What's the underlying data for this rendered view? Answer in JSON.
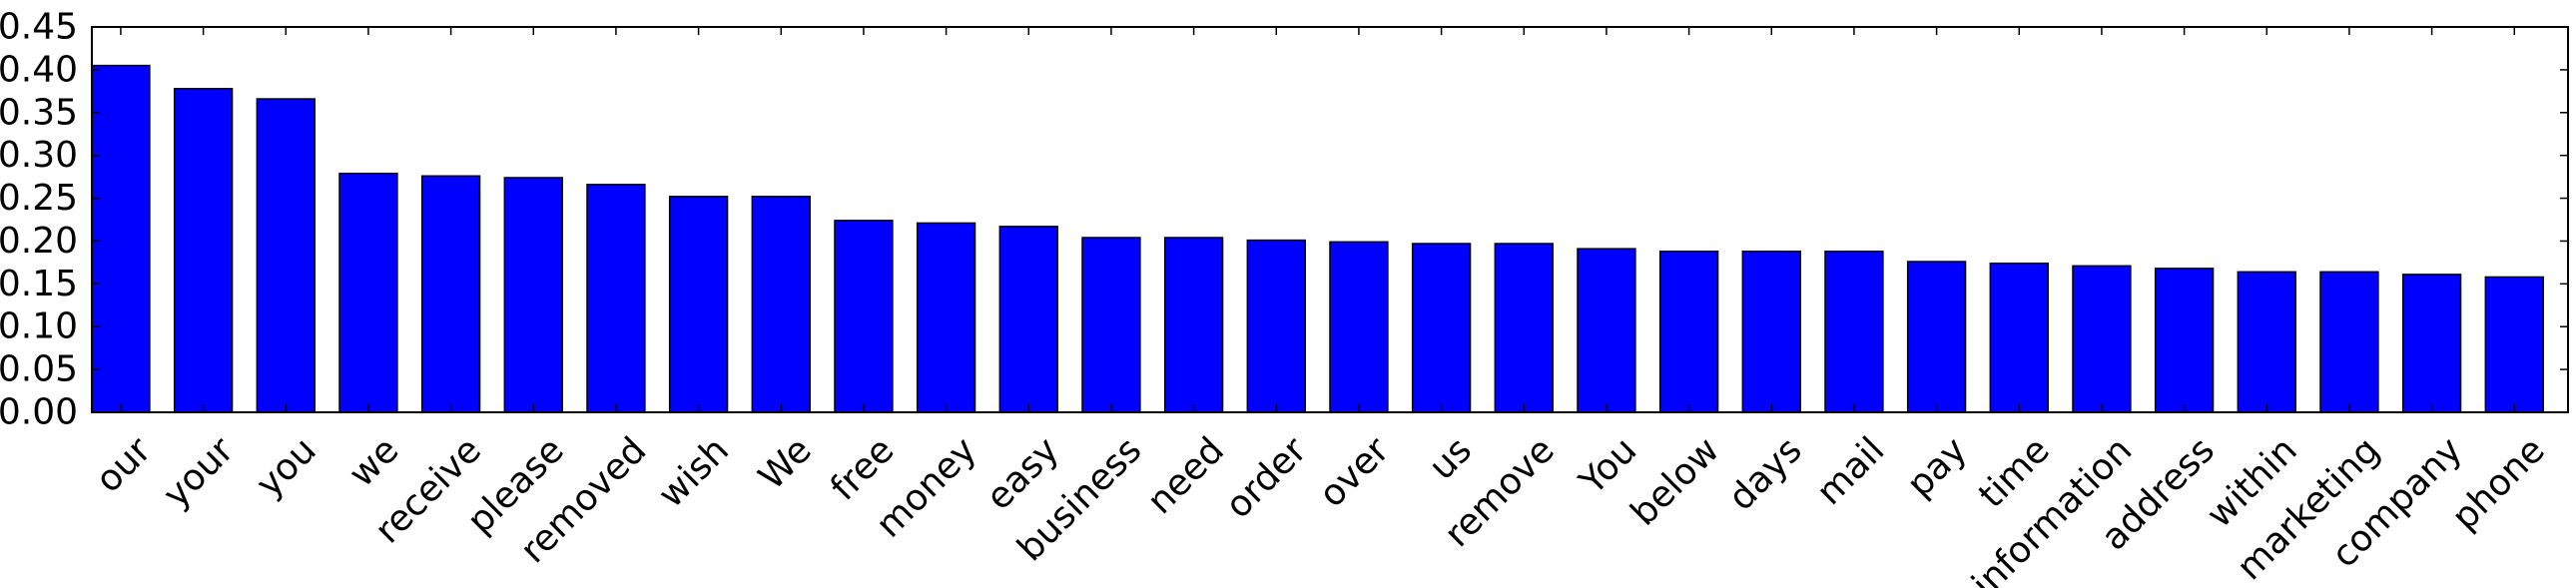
{
  "chart_data": {
    "type": "bar",
    "categories": [
      "our",
      "your",
      "you",
      "we",
      "receive",
      "please",
      "removed",
      "wish",
      "We",
      "free",
      "money",
      "easy",
      "business",
      "need",
      "order",
      "over",
      "us",
      "remove",
      "You",
      "below",
      "days",
      "mail",
      "pay",
      "time",
      "information",
      "address",
      "within",
      "marketing",
      "company",
      "phone"
    ],
    "values": [
      0.405,
      0.378,
      0.366,
      0.279,
      0.276,
      0.274,
      0.266,
      0.252,
      0.252,
      0.224,
      0.221,
      0.217,
      0.204,
      0.204,
      0.201,
      0.199,
      0.197,
      0.197,
      0.191,
      0.188,
      0.188,
      0.188,
      0.176,
      0.174,
      0.171,
      0.168,
      0.164,
      0.164,
      0.161,
      0.158
    ],
    "title": "",
    "xlabel": "",
    "ylabel": "",
    "ylim": [
      0,
      0.45
    ],
    "yticks": [
      "0.00",
      "0.05",
      "0.10",
      "0.15",
      "0.20",
      "0.25",
      "0.30",
      "0.35",
      "0.40",
      "0.45"
    ],
    "bar_color": "#0000ff",
    "edge_color": "#000000",
    "grid": false,
    "legend": "none"
  }
}
